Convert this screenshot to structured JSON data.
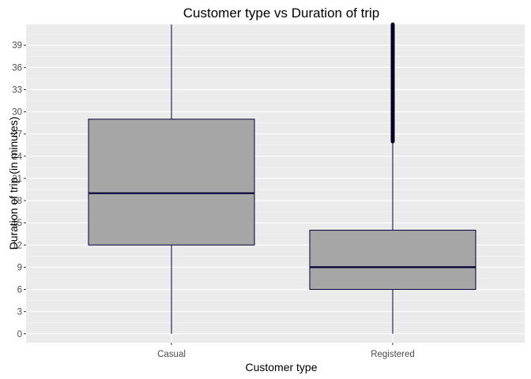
{
  "chart_data": {
    "type": "boxplot",
    "title": "Customer type vs Duration of trip",
    "xlabel": "Customer type",
    "ylabel": "Duration of trip (in minutes)",
    "categories": [
      "Casual",
      "Registered"
    ],
    "ylim": [
      -1.2,
      41.8
    ],
    "y_ticks": [
      0,
      3,
      6,
      9,
      12,
      15,
      18,
      21,
      24,
      27,
      30,
      33,
      36,
      39
    ],
    "y_tick_labels": [
      "0",
      "3",
      "6",
      "9",
      "12",
      "15",
      "18",
      "21",
      "24",
      "27",
      "30",
      "33",
      "36",
      "39"
    ],
    "boxes": [
      {
        "category": "Casual",
        "min": 0,
        "q1": 12,
        "median": 19,
        "q3": 29,
        "whisker_high": 41.8,
        "outliers_from": null
      },
      {
        "category": "Registered",
        "min": 0,
        "q1": 6,
        "median": 9,
        "q3": 14,
        "whisker_high": 26,
        "outliers_from": 26,
        "outliers_to": 41.8
      }
    ],
    "grid": true,
    "colors": {
      "panel_background": "#ebebeb",
      "grid_major": "#ffffff",
      "box_fill": "#a6a6a6",
      "box_outline": "#000033",
      "median_line": "#000033"
    }
  }
}
